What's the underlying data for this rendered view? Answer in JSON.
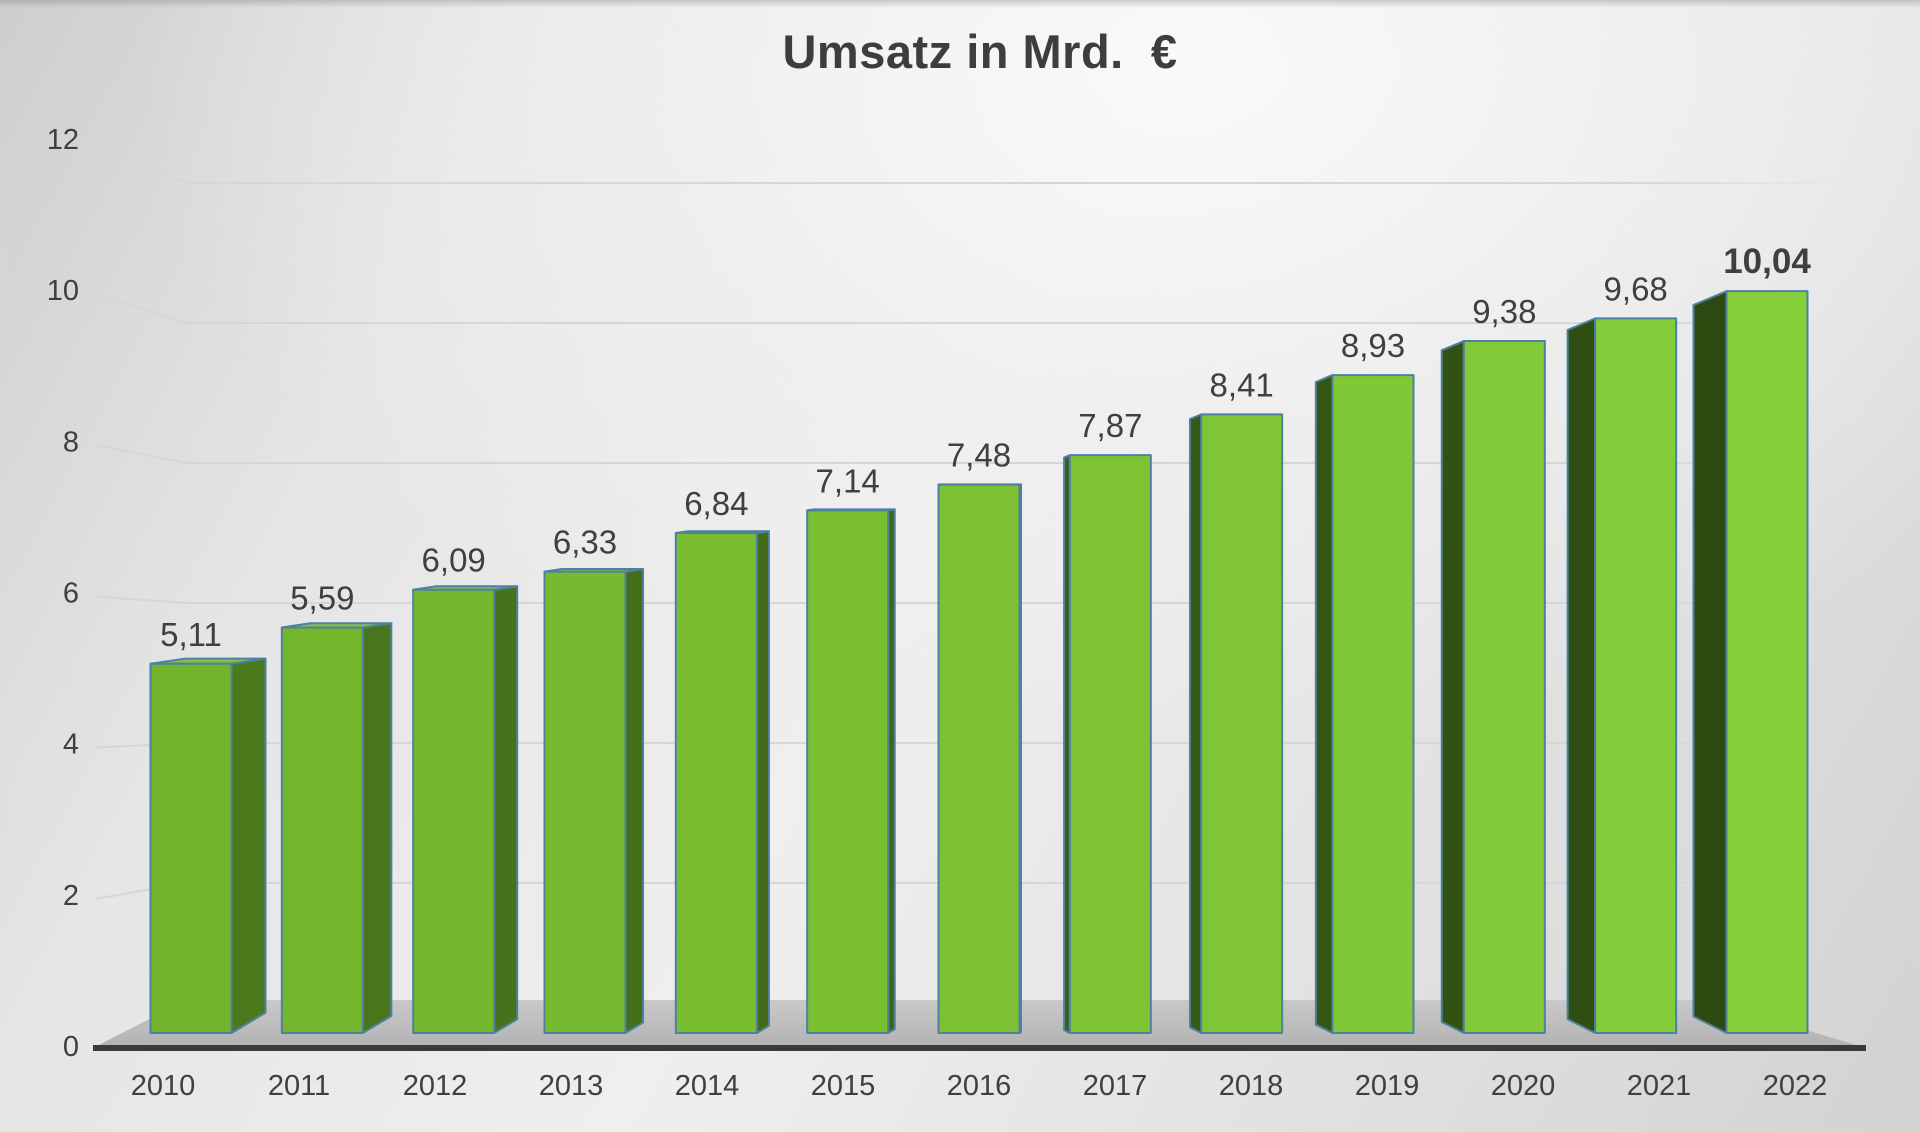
{
  "chart_data": {
    "type": "bar",
    "style": "3d-perspective-column",
    "title": "Umsatz in Mrd.  €",
    "xlabel": "",
    "ylabel": "",
    "categories": [
      "2010",
      "2011",
      "2012",
      "2013",
      "2014",
      "2015",
      "2016",
      "2017",
      "2018",
      "2019",
      "2020",
      "2021",
      "2022"
    ],
    "values": [
      5.11,
      5.59,
      6.09,
      6.33,
      6.84,
      7.14,
      7.48,
      7.87,
      8.41,
      8.93,
      9.38,
      9.68,
      10.04
    ],
    "value_labels": [
      "5,11",
      "5,59",
      "6,09",
      "6,33",
      "6,84",
      "7,14",
      "7,48",
      "7,87",
      "8,41",
      "8,93",
      "9,38",
      "9,68",
      "10,04"
    ],
    "emphasized_last_label": true,
    "ylim": [
      0,
      12
    ],
    "yticks": [
      0,
      2,
      4,
      6,
      8,
      10,
      12
    ],
    "ytick_labels": [
      "0",
      "2",
      "4",
      "6",
      "8",
      "10",
      "12"
    ],
    "grid": true,
    "legend": false,
    "colors": {
      "bar_front_left": "#71b42b",
      "bar_front_right": "#86ce3a",
      "bar_side_left": "#4b7a1d",
      "bar_side_right": "#2d4a10",
      "bar_outline": "#4e80a2",
      "gridline": "#d6d6d6",
      "axis_line": "#3a3a3a",
      "floor_top": "#c9c9c9",
      "floor_bottom": "#b2b2b2",
      "label_text": "#3f3f3f"
    }
  }
}
